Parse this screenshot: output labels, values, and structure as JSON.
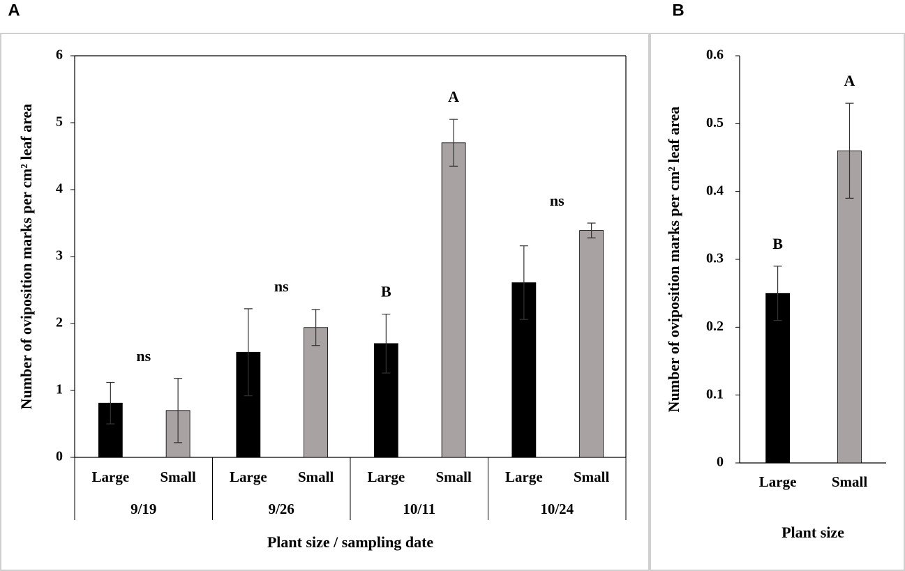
{
  "chart_data": [
    {
      "type": "bar",
      "panel_label": "A",
      "y_label": "Number of oviposition marks per cm² leaf area",
      "x_label": "Plant size / sampling date",
      "groups": [
        "9/19",
        "9/26",
        "10/11",
        "10/24"
      ],
      "categories": [
        "Large",
        "Small",
        "Large",
        "Small",
        "Large",
        "Small",
        "Large",
        "Small"
      ],
      "values": [
        0.81,
        0.7,
        1.57,
        1.94,
        1.7,
        4.7,
        2.61,
        3.39
      ],
      "errors": [
        0.31,
        0.48,
        0.65,
        0.27,
        0.44,
        0.35,
        0.55,
        0.11
      ],
      "colors": [
        "#000000",
        "#a8a2a2",
        "#000000",
        "#a8a2a2",
        "#000000",
        "#a8a2a2",
        "#000000",
        "#a8a2a2"
      ],
      "ylim": [
        0,
        6
      ],
      "yticks": [
        0,
        1,
        2,
        3,
        4,
        5,
        6
      ],
      "annotations": [
        {
          "text": "ns",
          "group": 0
        },
        {
          "text": "ns",
          "group": 1
        },
        {
          "text": "B",
          "category": 4
        },
        {
          "text": "A",
          "category": 5
        },
        {
          "text": "ns",
          "group": 3
        }
      ]
    },
    {
      "type": "bar",
      "panel_label": "B",
      "y_label": "Number of oviposition marks per cm² leaf area",
      "x_label": "Plant size",
      "categories": [
        "Large",
        "Small"
      ],
      "values": [
        0.25,
        0.46
      ],
      "errors": [
        0.04,
        0.07
      ],
      "colors": [
        "#000000",
        "#a8a2a2"
      ],
      "ylim": [
        0,
        0.6
      ],
      "yticks": [
        0,
        0.1,
        0.2,
        0.3,
        0.4,
        0.5,
        0.6
      ],
      "annotations": [
        {
          "text": "B",
          "category": 0
        },
        {
          "text": "A",
          "category": 1
        }
      ]
    }
  ]
}
